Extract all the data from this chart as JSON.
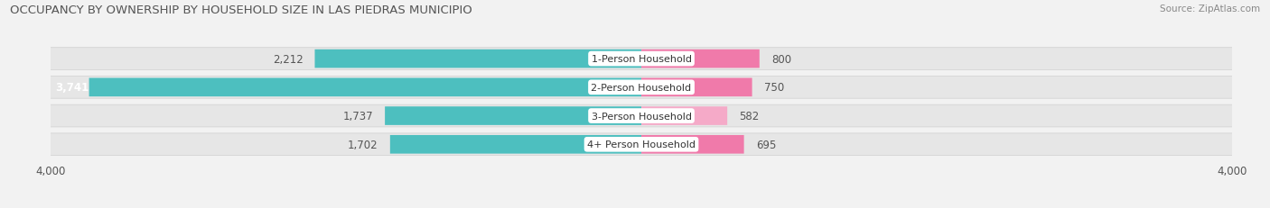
{
  "title": "OCCUPANCY BY OWNERSHIP BY HOUSEHOLD SIZE IN LAS PIEDRAS MUNICIPIO",
  "source": "Source: ZipAtlas.com",
  "categories": [
    "1-Person Household",
    "2-Person Household",
    "3-Person Household",
    "4+ Person Household"
  ],
  "owner_values": [
    2212,
    3741,
    1737,
    1702
  ],
  "renter_values": [
    800,
    750,
    582,
    695
  ],
  "owner_color": "#4dbfbf",
  "renter_color": "#f07aaa",
  "renter_color_light": "#f5aac8",
  "axis_max": 4000,
  "bg_color": "#f2f2f2",
  "row_bg_color": "#e8e8e8",
  "bar_height": 0.62,
  "title_fontsize": 9.5,
  "tick_fontsize": 8.5,
  "label_fontsize": 8.5,
  "cat_fontsize": 8
}
